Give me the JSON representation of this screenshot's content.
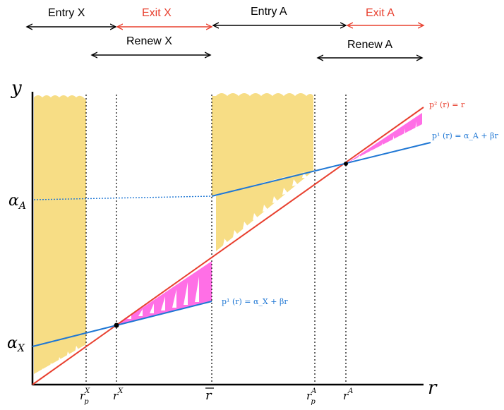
{
  "colors": {
    "black": "#000000",
    "red": "#e8402f",
    "blue": "#1f77d4",
    "yellow_fill": "#f7dd85",
    "magenta_fill": "#ff6fe6",
    "white": "#ffffff"
  },
  "top_labels": {
    "entry_x": "Entry X",
    "exit_x": "Exit X",
    "entry_a": "Entry A",
    "exit_a": "Exit A",
    "renew_x": "Renew X",
    "renew_a": "Renew A"
  },
  "axes": {
    "y_label": "y",
    "r_label": "r",
    "alpha_a": "α",
    "alpha_a_sub": "A",
    "alpha_x": "α",
    "alpha_x_sub": "X"
  },
  "x_ticks": {
    "rpX": "r",
    "rpX_sup": "X",
    "rpX_sub": "p",
    "rX": "r",
    "rX_sup": "X",
    "rbar": "r",
    "rpA": "r",
    "rpA_sup": "A",
    "rpA_sub": "p",
    "rA": "r",
    "rA_sup": "A"
  },
  "formulas": {
    "p2": "p² (r) = r",
    "p1_A": "p¹ (r) = α_A + βr",
    "p1_X": "p¹ (r) = α_X + βr"
  }
}
